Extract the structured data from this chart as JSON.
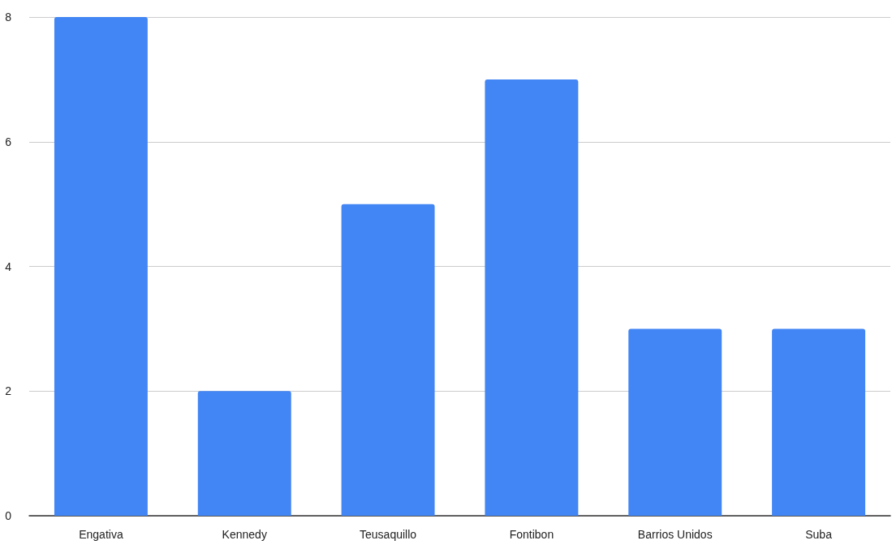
{
  "chart_data": {
    "type": "bar",
    "categories": [
      "Engativa",
      "Kennedy",
      "Teusaquillo",
      "Fontibon",
      "Barrios Unidos",
      "Suba"
    ],
    "values": [
      8,
      2,
      5,
      7,
      3,
      3
    ],
    "color": "#4285f4",
    "ylim": [
      0,
      8
    ],
    "yticks": [
      0,
      2,
      4,
      6,
      8
    ],
    "grid": "y"
  }
}
